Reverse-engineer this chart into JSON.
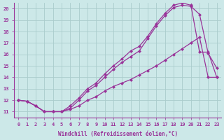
{
  "xlabel": "Windchill (Refroidissement éolien,°C)",
  "bg_color": "#cce8e8",
  "grid_color": "#aacccc",
  "line_color": "#993399",
  "xlim": [
    -0.5,
    23.5
  ],
  "ylim": [
    10.5,
    20.5
  ],
  "yticks": [
    11,
    12,
    13,
    14,
    15,
    16,
    17,
    18,
    19,
    20
  ],
  "xticks": [
    0,
    1,
    2,
    3,
    4,
    5,
    6,
    7,
    8,
    9,
    10,
    11,
    12,
    13,
    14,
    15,
    16,
    17,
    18,
    19,
    20,
    21,
    22,
    23
  ],
  "line1": {
    "x": [
      0,
      1,
      2,
      3,
      4,
      5,
      6,
      7,
      8,
      9,
      10,
      11,
      12,
      13,
      14,
      15,
      16,
      17,
      18,
      19,
      20,
      21,
      22,
      23
    ],
    "y": [
      12.0,
      11.9,
      11.5,
      11.0,
      11.0,
      11.0,
      11.2,
      11.5,
      12.0,
      12.3,
      12.8,
      13.2,
      13.5,
      13.8,
      14.2,
      14.6,
      15.0,
      15.5,
      16.0,
      16.5,
      17.0,
      17.5,
      14.0,
      14.0
    ]
  },
  "line2": {
    "x": [
      0,
      1,
      2,
      3,
      4,
      5,
      6,
      7,
      8,
      9,
      10,
      11,
      12,
      13,
      14,
      15,
      16,
      17,
      18,
      19,
      20,
      21,
      22,
      23
    ],
    "y": [
      12.0,
      11.9,
      11.5,
      11.0,
      11.0,
      11.0,
      11.3,
      12.0,
      12.8,
      13.3,
      14.0,
      14.7,
      15.3,
      15.8,
      16.3,
      17.4,
      18.5,
      19.4,
      20.1,
      20.3,
      20.2,
      19.5,
      16.1,
      14.8
    ]
  },
  "line3": {
    "x": [
      0,
      1,
      2,
      3,
      4,
      5,
      6,
      7,
      8,
      9,
      10,
      11,
      12,
      13,
      14,
      15,
      16,
      17,
      18,
      19,
      20,
      21,
      22,
      23
    ],
    "y": [
      12.0,
      11.9,
      11.5,
      11.0,
      11.0,
      11.0,
      11.5,
      12.2,
      13.0,
      13.5,
      14.3,
      15.0,
      15.6,
      16.3,
      16.7,
      17.6,
      18.7,
      19.6,
      20.3,
      20.5,
      20.3,
      16.2,
      16.2,
      14.0
    ]
  }
}
